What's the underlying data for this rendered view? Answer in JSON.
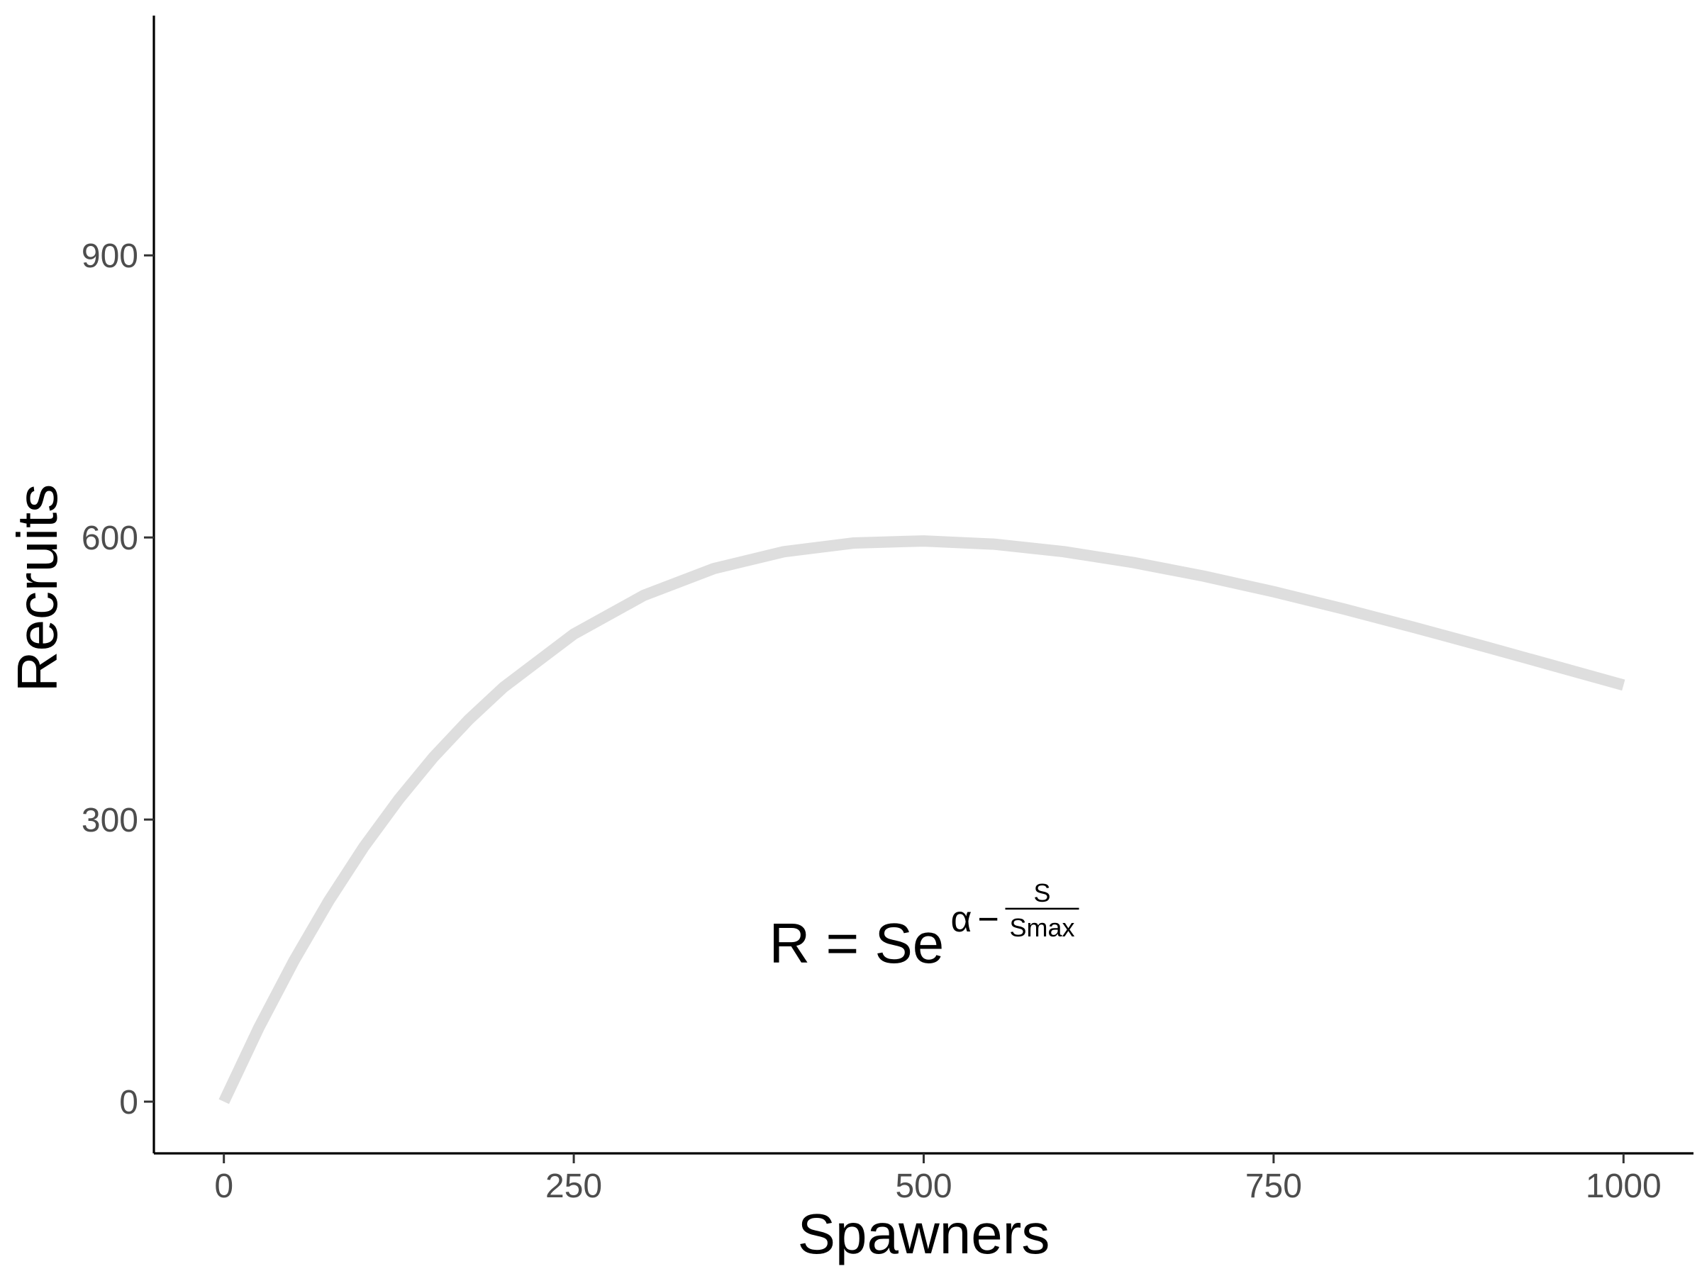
{
  "chart_data": {
    "type": "line",
    "title": "",
    "xlabel": "Spawners",
    "ylabel": "Recruits",
    "xlim": [
      -50,
      1050
    ],
    "ylim": [
      -55,
      1155
    ],
    "x_ticks": [
      0,
      250,
      500,
      750,
      1000
    ],
    "y_ticks": [
      0,
      300,
      600,
      900
    ],
    "x_tick_labels": [
      "0",
      "250",
      "500",
      "750",
      "1000"
    ],
    "y_tick_labels": [
      "0",
      "300",
      "600",
      "900"
    ],
    "grid": false,
    "legend": "none",
    "series": [
      {
        "color": "#dedede",
        "x": [
          0,
          25,
          50,
          75,
          100,
          125,
          150,
          175,
          200,
          250,
          300,
          350,
          400,
          450,
          500,
          550,
          600,
          650,
          700,
          750,
          800,
          850,
          900,
          950,
          1000
        ],
        "y": [
          0,
          78.7,
          149.7,
          213.6,
          270.8,
          321.6,
          366.7,
          406.3,
          440.9,
          497.2,
          538.4,
          566.9,
          584.8,
          594.1,
          596.3,
          592.9,
          584.9,
          573.3,
          558.9,
          542.3,
          524.0,
          504.5,
          484.3,
          463.7,
          443.0
        ]
      }
    ],
    "annotations": [
      {
        "lhs": "R = Se",
        "exp_symbol": "α",
        "exp_operator": "−",
        "frac_numerator": "S",
        "frac_denominator": "Smax",
        "x": 500,
        "y": 175
      }
    ]
  }
}
